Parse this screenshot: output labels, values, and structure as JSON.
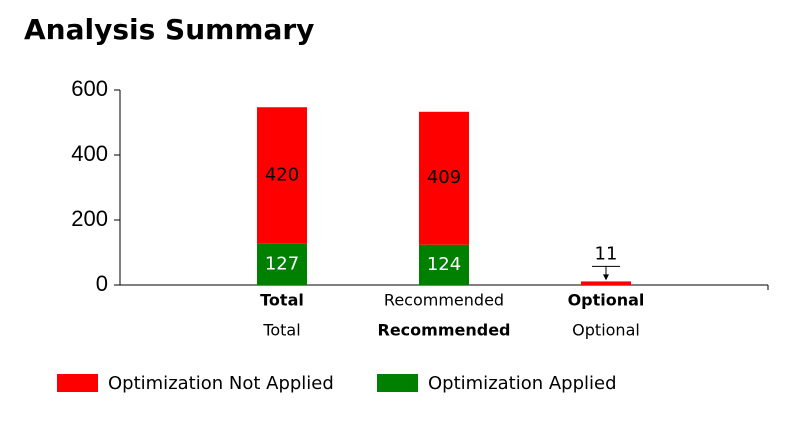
{
  "chart_data": {
    "type": "stacked-bar",
    "title": "Analysis Summary",
    "categories": [
      "Total",
      "Recommended",
      "Optional"
    ],
    "second_row_labels": [
      "Total",
      "Recommended",
      "Optional"
    ],
    "series": [
      {
        "name": "Optimization Applied",
        "color": "#008000",
        "label_color": "#ffffff",
        "values": [
          127,
          124,
          0
        ]
      },
      {
        "name": "Optimization Not Applied",
        "color": "#ff0000",
        "label_color": "#000000",
        "values": [
          420,
          409,
          11
        ]
      }
    ],
    "legend_order": [
      1,
      0
    ],
    "ylim": [
      0,
      600
    ],
    "yticks": [
      0,
      200,
      400,
      600
    ]
  }
}
